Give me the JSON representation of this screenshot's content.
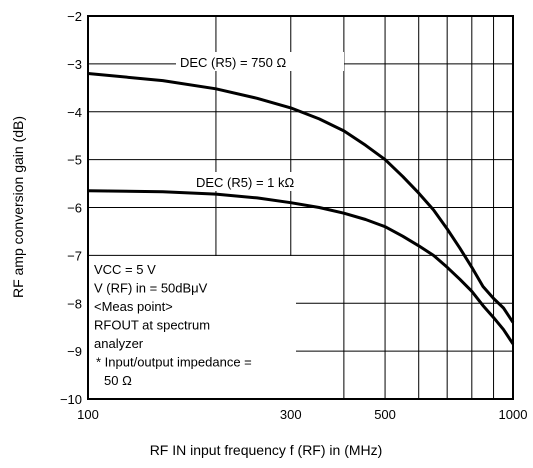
{
  "chart_data": {
    "type": "line",
    "xscale": "log",
    "xlim": [
      100,
      1000
    ],
    "ylim": [
      -10,
      -2
    ],
    "grid": true,
    "xlabel": "RF IN input frequency   f (RF) in    (MHz)",
    "ylabel": "RF amp conversion gain    (dB)",
    "x_tick_labels": [
      {
        "value": 100,
        "label": "100"
      },
      {
        "value": 300,
        "label": "300"
      },
      {
        "value": 500,
        "label": "500"
      },
      {
        "value": 1000,
        "label": "1000"
      }
    ],
    "y_ticks": [
      -2,
      -3,
      -4,
      -5,
      -6,
      -7,
      -8,
      -9,
      -10
    ],
    "y_tick_labels": [
      "−2",
      "−3",
      "−4",
      "−5",
      "−6",
      "−7",
      "−8",
      "−9",
      "−10"
    ],
    "x_gridlines": [
      200,
      300,
      400,
      500,
      600,
      700,
      800,
      900
    ],
    "series": [
      {
        "name": "DEC (R5) = 750 Ω",
        "x": [
          100,
          150,
          200,
          250,
          300,
          350,
          400,
          450,
          500,
          550,
          600,
          650,
          700,
          750,
          800,
          850,
          900,
          950,
          1000
        ],
        "y": [
          -3.2,
          -3.35,
          -3.52,
          -3.72,
          -3.92,
          -4.15,
          -4.4,
          -4.7,
          -5.0,
          -5.35,
          -5.7,
          -6.05,
          -6.45,
          -6.85,
          -7.25,
          -7.65,
          -7.9,
          -8.1,
          -8.4
        ]
      },
      {
        "name": "DEC (R5) = 1 kΩ",
        "x": [
          100,
          150,
          200,
          250,
          300,
          350,
          400,
          450,
          500,
          550,
          600,
          650,
          700,
          750,
          800,
          850,
          900,
          950,
          1000
        ],
        "y": [
          -5.65,
          -5.67,
          -5.72,
          -5.8,
          -5.9,
          -6.0,
          -6.12,
          -6.25,
          -6.4,
          -6.6,
          -6.8,
          -7.0,
          -7.25,
          -7.5,
          -7.75,
          -8.05,
          -8.3,
          -8.55,
          -8.85
        ]
      }
    ],
    "curve_labels": [
      "DEC (R5) = 750 Ω",
      "DEC (R5) = 1 kΩ"
    ],
    "annotation_lines": [
      "VCC = 5 V",
      "V (RF) in = 50dBμV",
      "<Meas point>",
      "RFOUT at spectrum",
      "analyzer",
      "*  Input/output impedance =",
      "50 Ω"
    ]
  }
}
